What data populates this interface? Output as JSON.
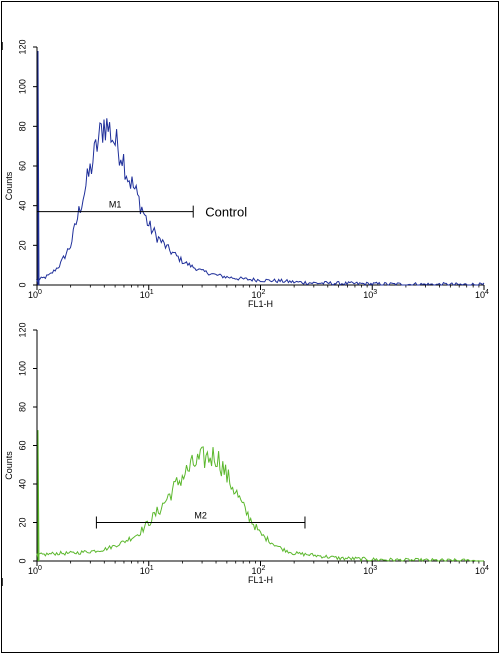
{
  "chart_data": [
    {
      "type": "line",
      "xlabel": "FL1-H",
      "ylabel": "Counts",
      "xscale": "log",
      "xlim": [
        1,
        10000
      ],
      "ylim": [
        0,
        120
      ],
      "yticks": [
        "0",
        "20",
        "40",
        "60",
        "80",
        "100",
        "120"
      ],
      "xticks": [
        {
          "base": "10",
          "exp": "0"
        },
        {
          "base": "10",
          "exp": "1"
        },
        {
          "base": "10",
          "exp": "2"
        },
        {
          "base": "10",
          "exp": "3"
        },
        {
          "base": "10",
          "exp": "4"
        }
      ],
      "grid": false,
      "series_color": "#1f2f9a",
      "series": {
        "x": [
          1,
          1.3,
          1.6,
          2.0,
          2.5,
          3.0,
          3.5,
          4.0,
          4.5,
          5.0,
          5.8,
          6.5,
          7.5,
          8.5,
          10,
          12,
          15,
          20,
          25,
          30,
          40,
          50,
          70,
          100,
          150,
          200,
          300,
          500,
          1000,
          2000,
          5000,
          10000
        ],
        "y": [
          2,
          5,
          10,
          20,
          42,
          58,
          72,
          82,
          78,
          72,
          66,
          55,
          48,
          40,
          30,
          24,
          18,
          12,
          9,
          7,
          5,
          4,
          3,
          2.5,
          2,
          1.5,
          1,
          0.8,
          0.5,
          0.3,
          0.2,
          0.1
        ]
      },
      "gate": {
        "label": "M1",
        "x_start": 1,
        "x_end": 25,
        "y": 37
      },
      "annotation": "Control"
    },
    {
      "type": "line",
      "xlabel": "FL1-H",
      "ylabel": "Counts",
      "xscale": "log",
      "xlim": [
        1,
        10000
      ],
      "ylim": [
        0,
        120
      ],
      "yticks": [
        "0",
        "20",
        "40",
        "60",
        "80",
        "100",
        "120"
      ],
      "xticks": [
        {
          "base": "10",
          "exp": "0"
        },
        {
          "base": "10",
          "exp": "1"
        },
        {
          "base": "10",
          "exp": "2"
        },
        {
          "base": "10",
          "exp": "3"
        },
        {
          "base": "10",
          "exp": "4"
        }
      ],
      "grid": false,
      "series_color": "#5cb82e",
      "series": {
        "x": [
          1,
          1.5,
          2,
          3,
          4,
          5,
          6,
          8,
          10,
          13,
          16,
          20,
          25,
          30,
          35,
          40,
          45,
          50,
          60,
          70,
          85,
          100,
          130,
          160,
          200,
          300,
          500,
          1000,
          2000,
          5000,
          10000
        ],
        "y": [
          3,
          4,
          4,
          5,
          6,
          8,
          10,
          14,
          20,
          28,
          36,
          44,
          50,
          53,
          54,
          55,
          50,
          44,
          36,
          28,
          20,
          14,
          9,
          6,
          4,
          3,
          1.5,
          0.8,
          0.4,
          0.2,
          0.1
        ]
      },
      "gate": {
        "label": "M2",
        "x_start": 3.4,
        "x_end": 250,
        "y": 20
      }
    }
  ]
}
